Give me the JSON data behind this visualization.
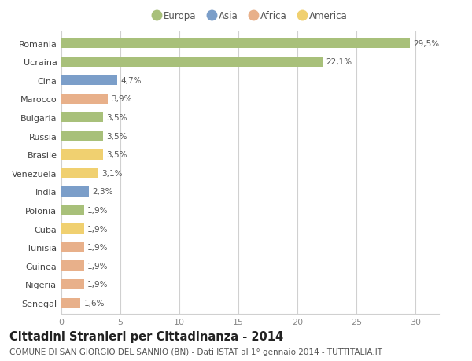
{
  "categories": [
    "Romania",
    "Ucraina",
    "Cina",
    "Marocco",
    "Bulgaria",
    "Russia",
    "Brasile",
    "Venezuela",
    "India",
    "Polonia",
    "Cuba",
    "Tunisia",
    "Guinea",
    "Nigeria",
    "Senegal"
  ],
  "values": [
    29.5,
    22.1,
    4.7,
    3.9,
    3.5,
    3.5,
    3.5,
    3.1,
    2.3,
    1.9,
    1.9,
    1.9,
    1.9,
    1.9,
    1.6
  ],
  "colors": [
    "#a8c07a",
    "#a8c07a",
    "#7b9ec9",
    "#e8b08a",
    "#a8c07a",
    "#a8c07a",
    "#f0d070",
    "#f0d070",
    "#7b9ec9",
    "#a8c07a",
    "#f0d070",
    "#e8b08a",
    "#e8b08a",
    "#e8b08a",
    "#e8b08a"
  ],
  "labels": [
    "29,5%",
    "22,1%",
    "4,7%",
    "3,9%",
    "3,5%",
    "3,5%",
    "3,5%",
    "3,1%",
    "2,3%",
    "1,9%",
    "1,9%",
    "1,9%",
    "1,9%",
    "1,9%",
    "1,6%"
  ],
  "legend_labels": [
    "Europa",
    "Asia",
    "Africa",
    "America"
  ],
  "legend_colors": [
    "#a8c07a",
    "#7b9ec9",
    "#e8b08a",
    "#f0d070"
  ],
  "title": "Cittadini Stranieri per Cittadinanza - 2014",
  "subtitle": "COMUNE DI SAN GIORGIO DEL SANNIO (BN) - Dati ISTAT al 1° gennaio 2014 - TUTTITALIA.IT",
  "xlim": [
    0,
    32
  ],
  "xticks": [
    0,
    5,
    10,
    15,
    20,
    25,
    30
  ],
  "background_color": "#ffffff",
  "grid_color": "#d0d0d0",
  "bar_height": 0.55,
  "label_fontsize": 7.5,
  "title_fontsize": 10.5,
  "subtitle_fontsize": 7.5,
  "tick_fontsize": 8,
  "ytick_fontsize": 8
}
